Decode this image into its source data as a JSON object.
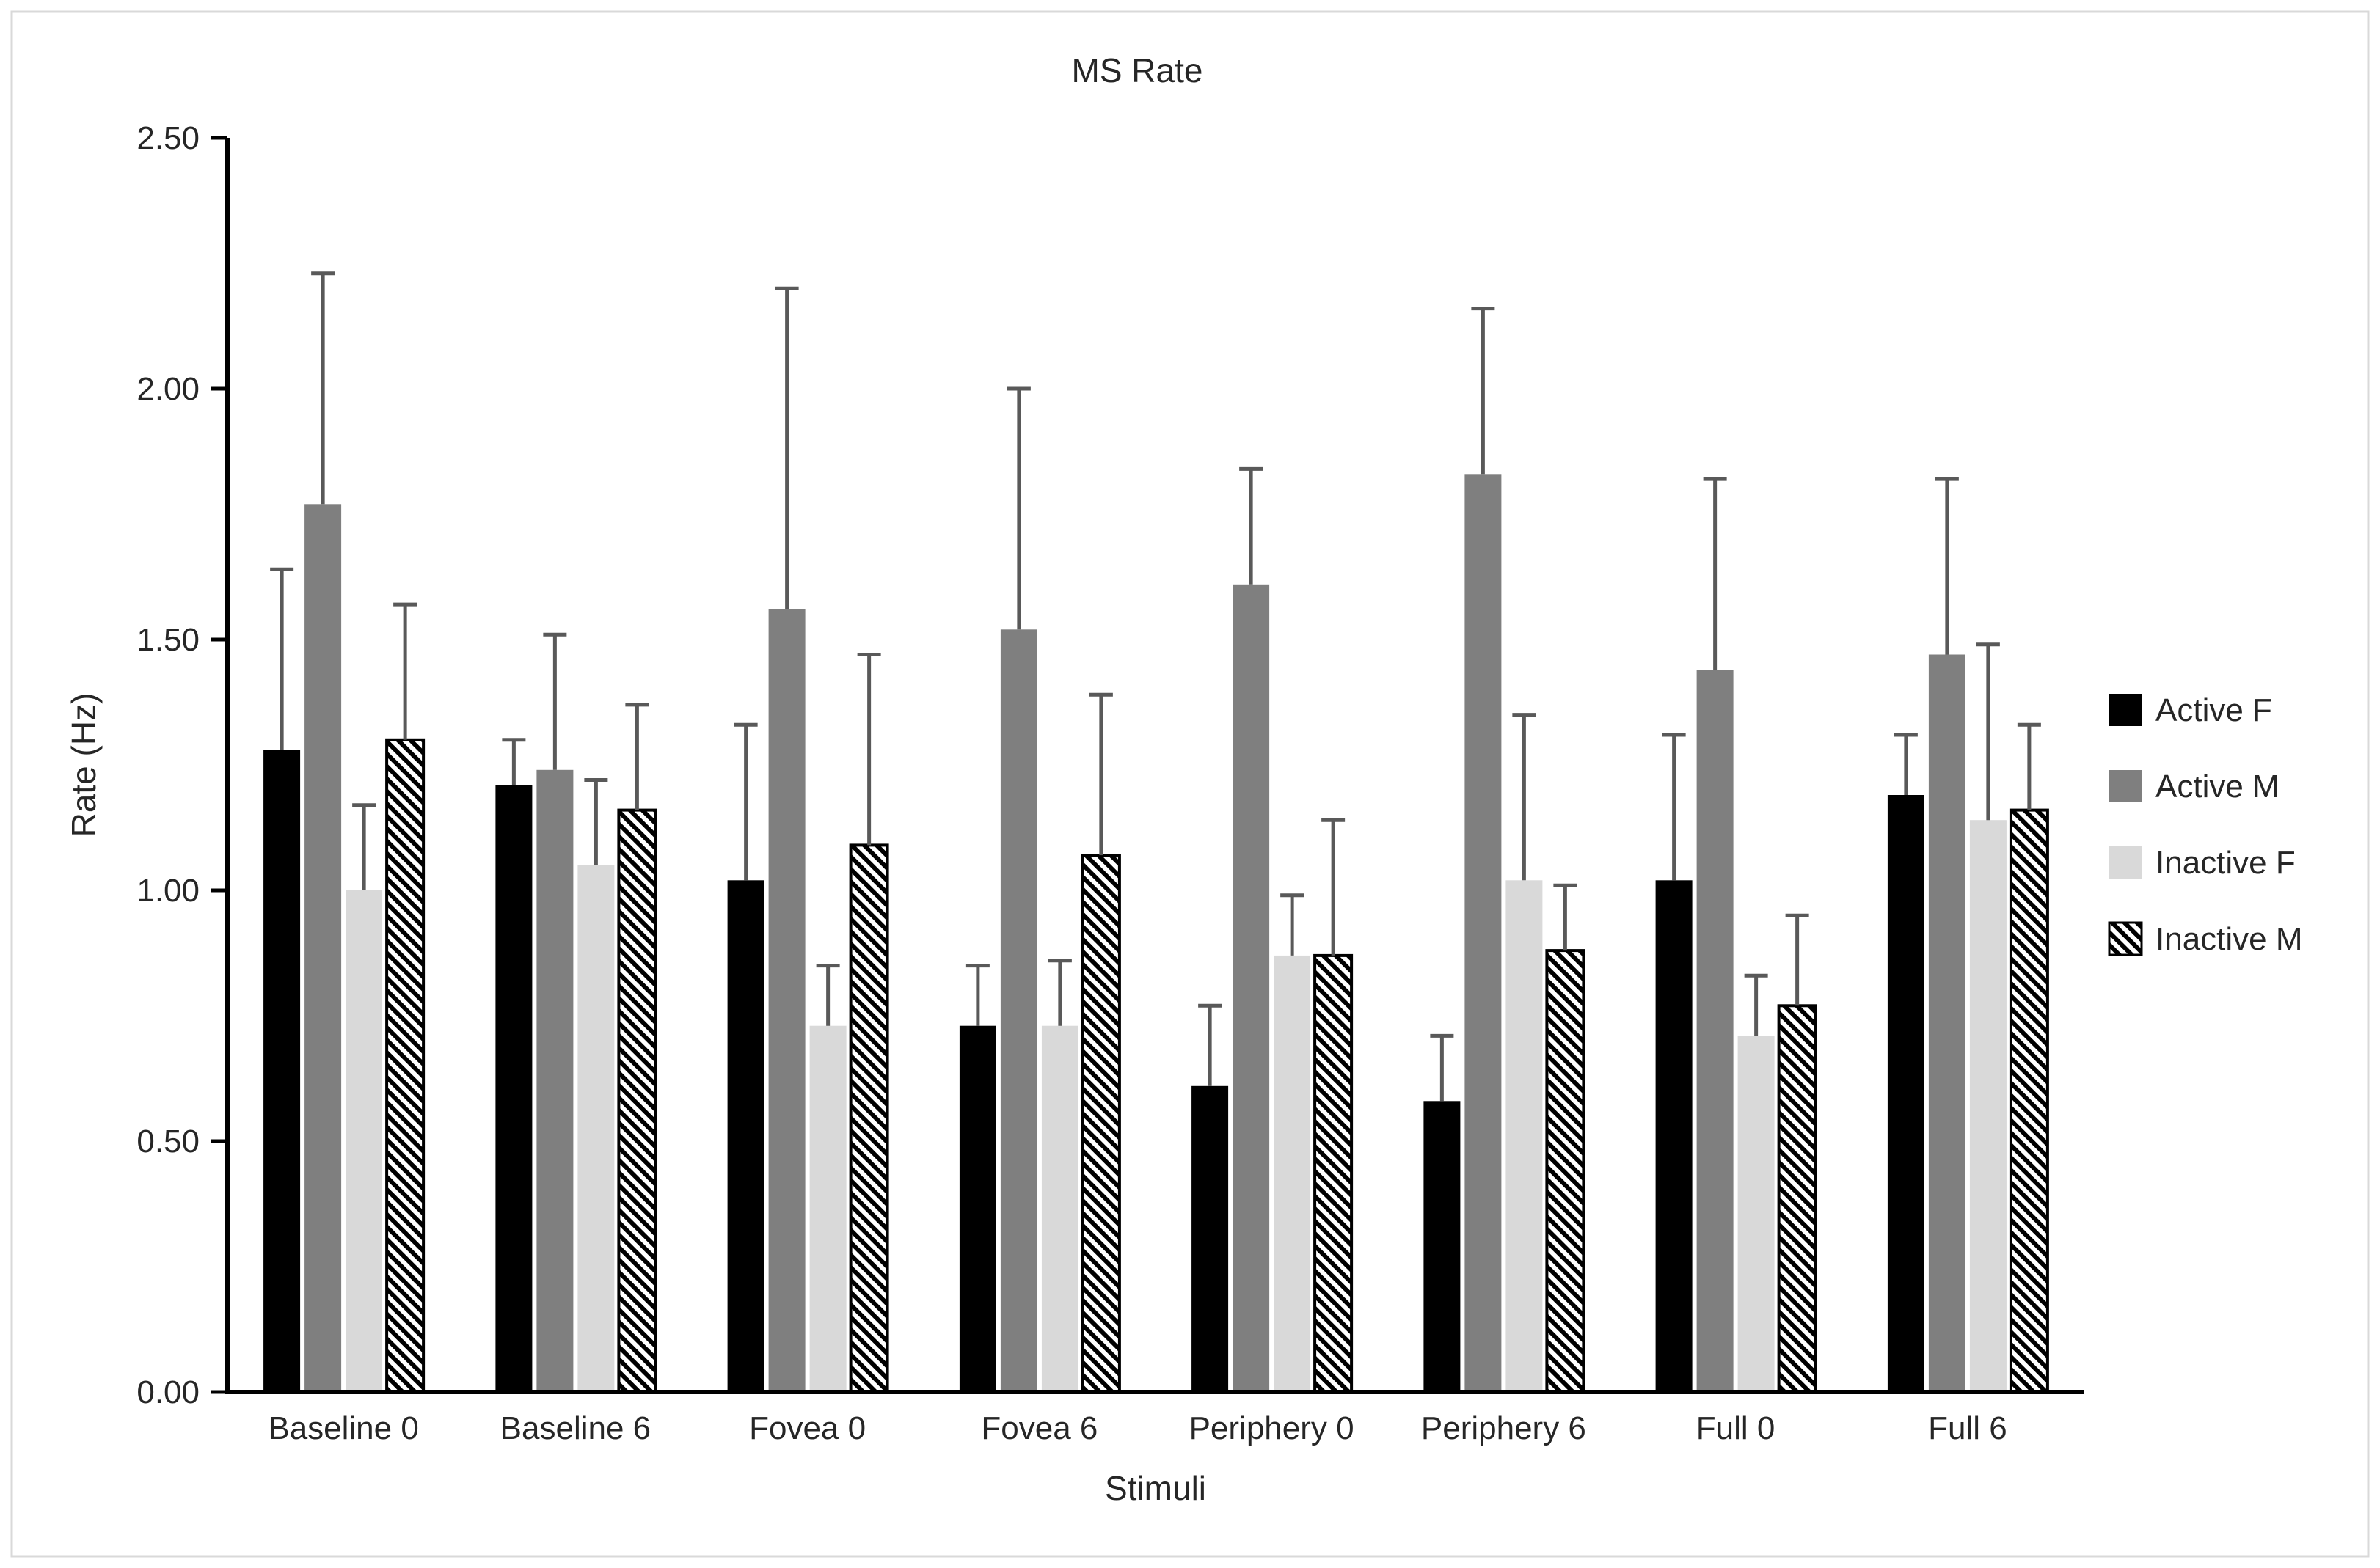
{
  "chart_data": {
    "type": "bar",
    "title": "MS Rate",
    "xlabel": "Stimuli",
    "ylabel": "Rate (Hz)",
    "ylim": [
      0,
      2.5
    ],
    "ytick_step": 0.5,
    "ytick_labels": [
      "0.00",
      "0.50",
      "1.00",
      "1.50",
      "2.00",
      "2.50"
    ],
    "grid": false,
    "legend_position": "right",
    "categories": [
      "Baseline 0",
      "Baseline 6",
      "Fovea 0",
      "Fovea 6",
      "Periphery 0",
      "Periphery 6",
      "Full 0",
      "Full 6"
    ],
    "series": [
      {
        "name": "Active F",
        "fill": "#000000",
        "values": [
          1.28,
          1.21,
          1.02,
          0.73,
          0.61,
          0.58,
          1.02,
          1.19
        ],
        "errors_up": [
          0.36,
          0.09,
          0.31,
          0.12,
          0.16,
          0.13,
          0.29,
          0.12
        ]
      },
      {
        "name": "Active M",
        "fill": "#7f7f7f",
        "values": [
          1.77,
          1.24,
          1.56,
          1.52,
          1.61,
          1.83,
          1.44,
          1.47
        ],
        "errors_up": [
          0.46,
          0.27,
          0.64,
          0.48,
          0.23,
          0.33,
          0.38,
          0.35
        ]
      },
      {
        "name": "Inactive F",
        "fill": "#d9d9d9",
        "values": [
          1.0,
          1.05,
          0.73,
          0.73,
          0.87,
          1.02,
          0.71,
          1.14
        ],
        "errors_up": [
          0.17,
          0.17,
          0.12,
          0.13,
          0.12,
          0.33,
          0.12,
          0.35
        ]
      },
      {
        "name": "Inactive M",
        "fill": "hatch",
        "values": [
          1.3,
          1.16,
          1.09,
          1.07,
          0.87,
          0.88,
          0.77,
          1.16
        ],
        "errors_up": [
          0.27,
          0.21,
          0.38,
          0.32,
          0.27,
          0.13,
          0.18,
          0.17
        ]
      }
    ],
    "colors": {
      "error_bar": "#595959",
      "axis": "#000000",
      "text": "#262626",
      "frame_border": "#d9d9d9",
      "hatch_stripe": "#000000",
      "hatch_background": "#ffffff"
    }
  }
}
